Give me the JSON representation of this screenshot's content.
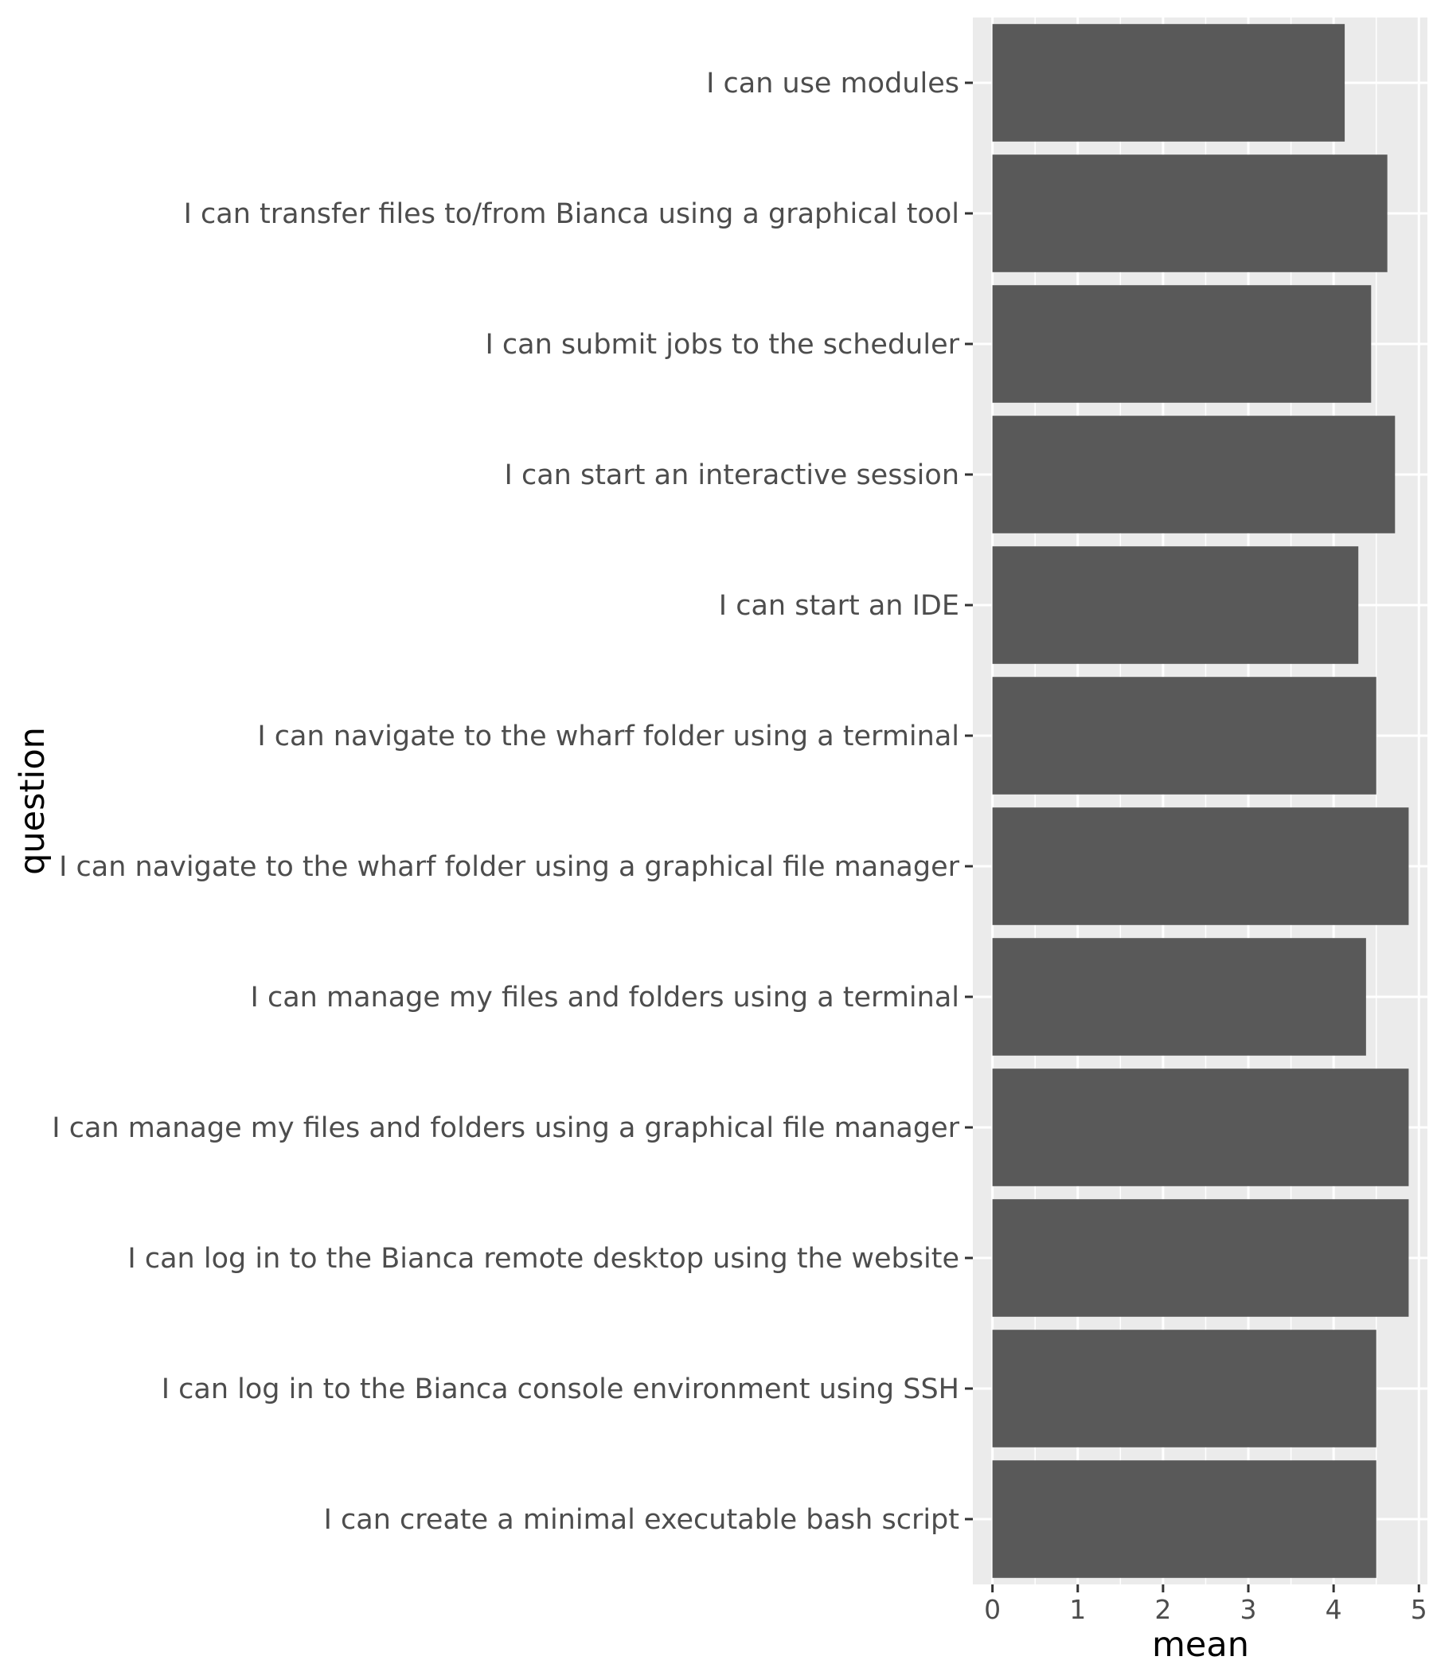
{
  "chart_data": {
    "type": "bar",
    "orientation": "horizontal",
    "title": "",
    "xlabel": "mean",
    "ylabel": "question",
    "xlim": [
      -0.23,
      5.1
    ],
    "x_ticks": [
      0,
      1,
      2,
      3,
      4,
      5
    ],
    "grid": true,
    "panel_background": "#ebebeb",
    "bar_color": "#595959",
    "categories": [
      "I can use modules",
      "I can transfer files to/from Bianca using a graphical tool",
      "I can submit jobs to the scheduler",
      "I can start an interactive session",
      "I can start an IDE",
      "I can navigate to the wharf folder using a terminal",
      "I can navigate to the wharf folder using a graphical file manager",
      "I can manage my files and folders using a terminal",
      "I can manage my files and folders using a graphical file manager",
      "I can log in to the Bianca remote desktop using the website",
      "I can log in to the Bianca console environment using SSH",
      "I can create a minimal executable bash script"
    ],
    "values": [
      4.13,
      4.63,
      4.44,
      4.72,
      4.29,
      4.5,
      4.88,
      4.38,
      4.88,
      4.88,
      4.5,
      4.5
    ]
  }
}
